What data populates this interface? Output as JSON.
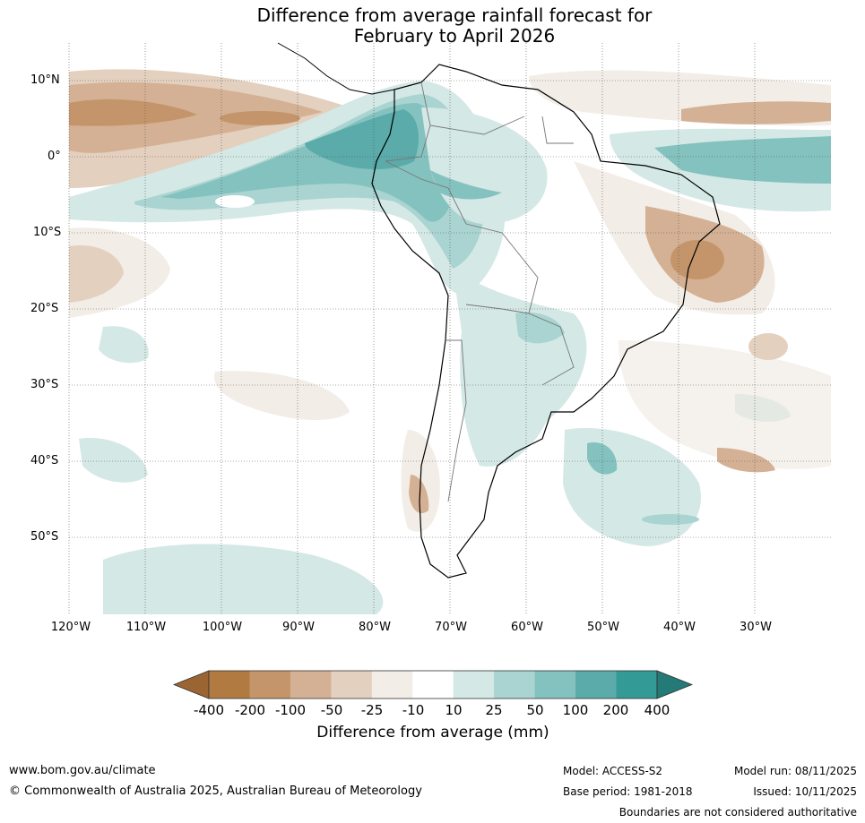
{
  "title_line1": "Difference from average rainfall forecast for",
  "title_line2": "February to April 2026",
  "latitude_labels": [
    "10°N",
    "0°",
    "10°S",
    "20°S",
    "30°S",
    "40°S",
    "50°S"
  ],
  "longitude_labels": [
    "120°W",
    "110°W",
    "100°W",
    "90°W",
    "80°W",
    "70°W",
    "60°W",
    "50°W",
    "40°W",
    "30°W"
  ],
  "colorbar": {
    "title": "Difference from average (mm)",
    "ticks": [
      "-400",
      "-200",
      "-100",
      "-50",
      "-25",
      "-10",
      "10",
      "25",
      "50",
      "100",
      "200",
      "400"
    ],
    "colors": [
      "#9a6533",
      "#b07a41",
      "#c4956a",
      "#d4b194",
      "#e4d0bf",
      "#f2ede7",
      "#ffffff",
      "#d4e8e6",
      "#a9d4d1",
      "#84c2bf",
      "#5aabaa",
      "#339a96",
      "#247a77"
    ]
  },
  "footer": {
    "website": "www.bom.gov.au/climate",
    "copyright": "© Commonwealth of Australia 2025, Australian Bureau of Meteorology",
    "model": "Model: ACCESS-S2",
    "base_period": "Base period: 1981-2018",
    "model_run": "Model run: 08/11/2025",
    "issued": "Issued: 10/11/2025",
    "disclaimer": "Boundaries are not considered authoritative"
  }
}
